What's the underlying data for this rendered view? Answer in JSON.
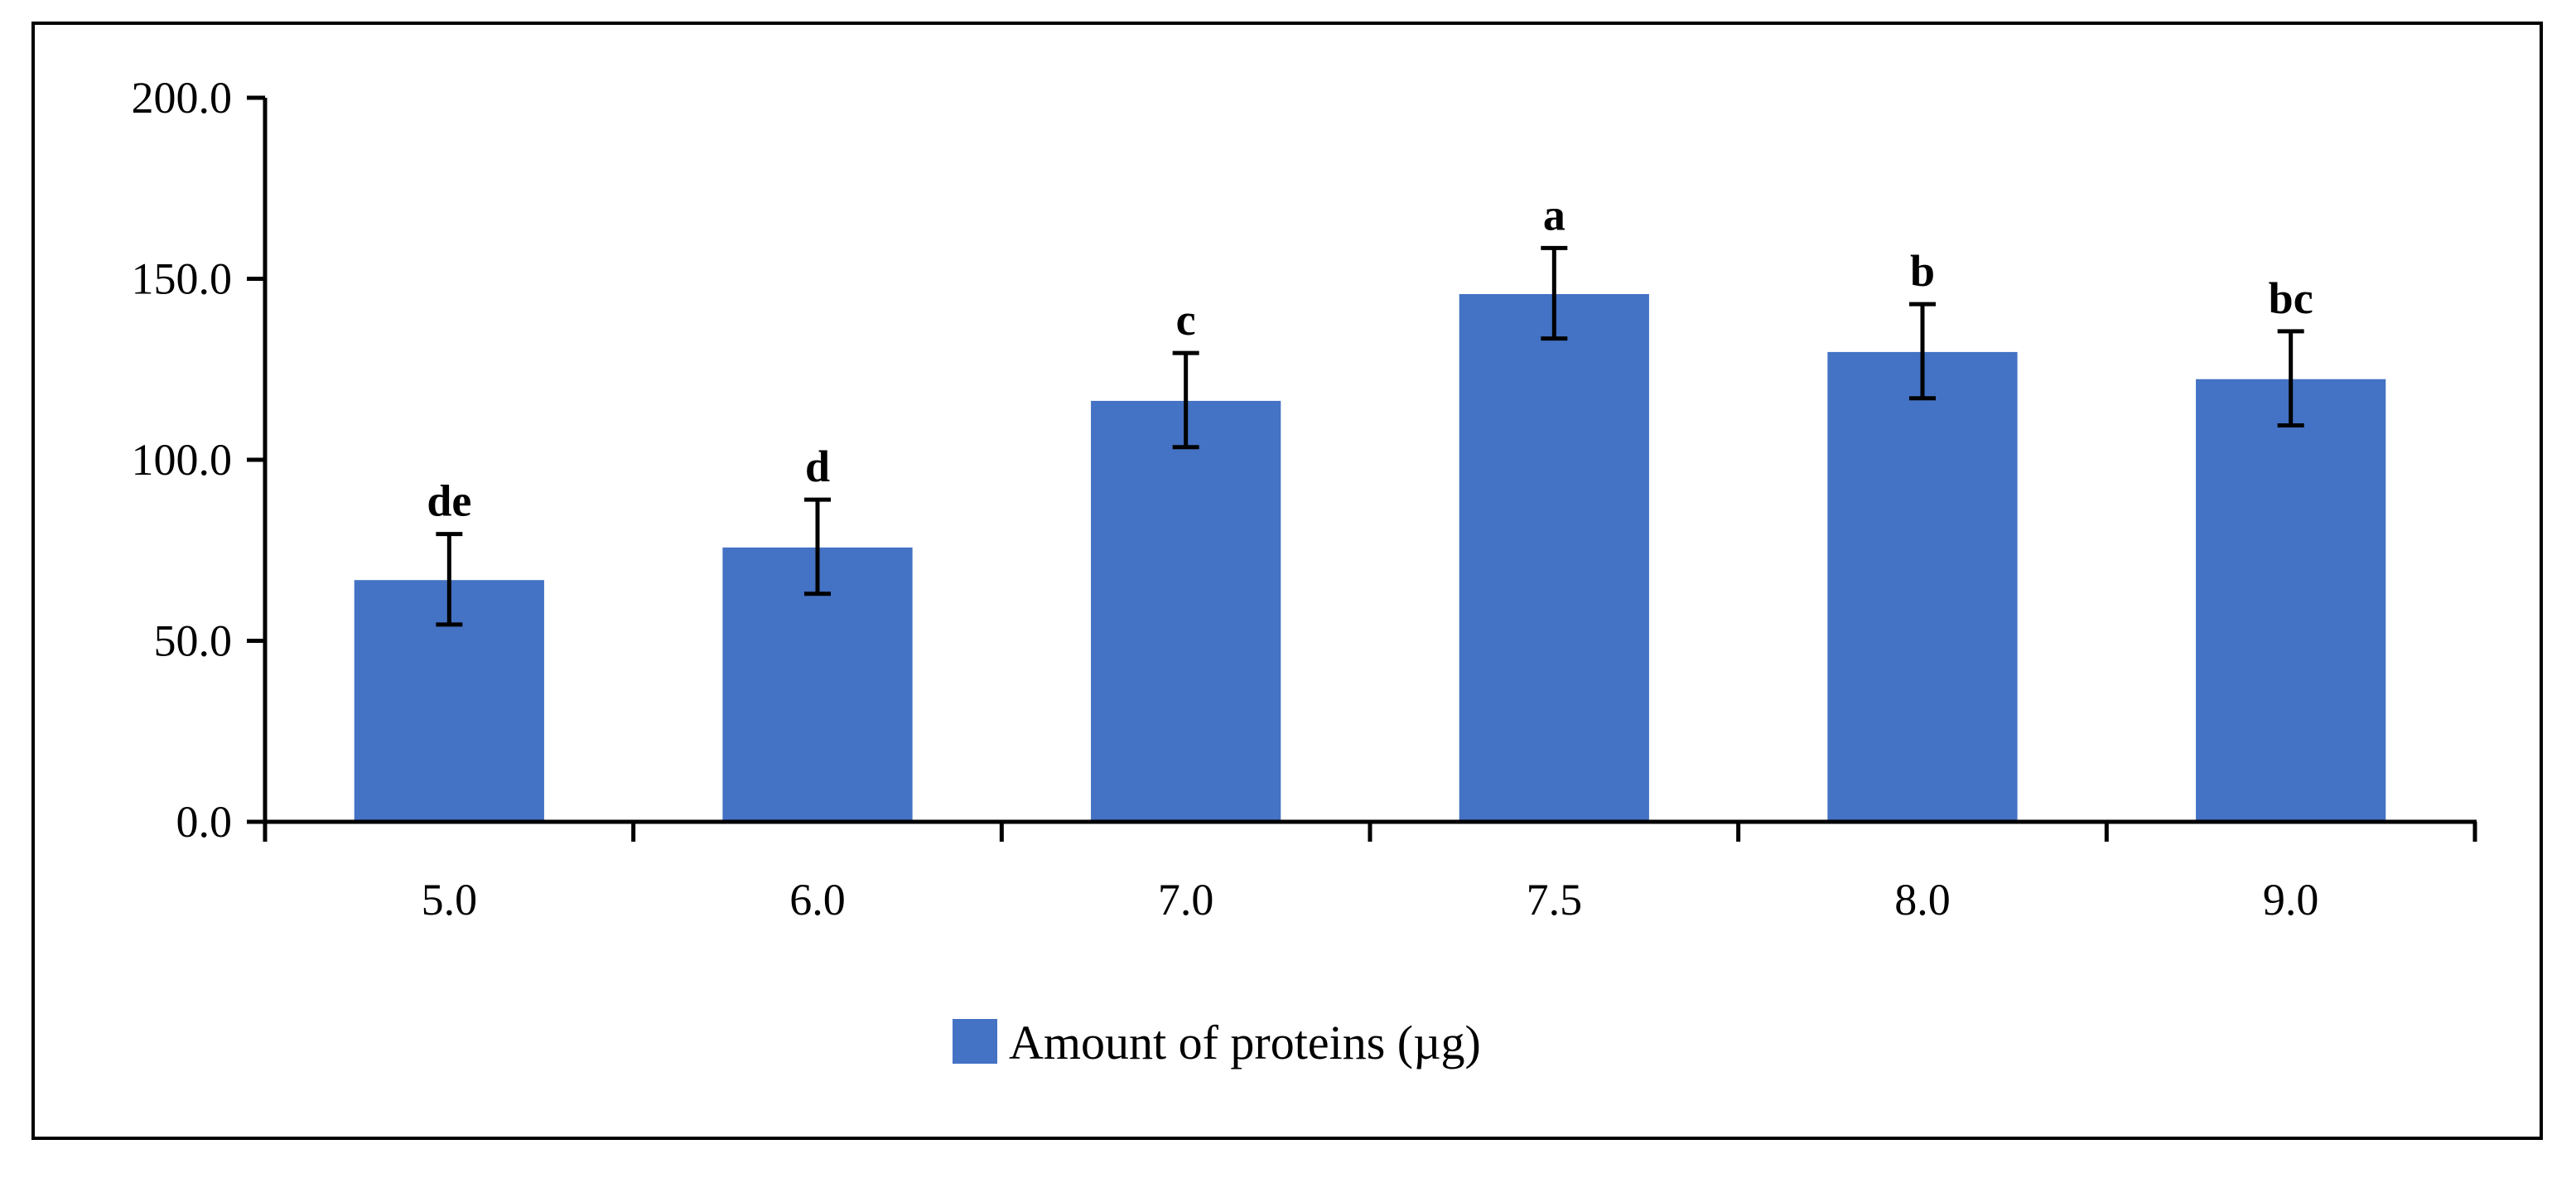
{
  "chart_data": {
    "type": "bar",
    "title": "",
    "xlabel": "",
    "ylabel": "",
    "categories": [
      "5.0",
      "6.0",
      "7.0",
      "7.5",
      "8.0",
      "9.0"
    ],
    "series": [
      {
        "name": "Amount of proteins (µg)",
        "color": "#4472C4",
        "values": [
          67,
          76,
          116.5,
          146,
          130,
          122.5
        ],
        "error": [
          12.5,
          13,
          13,
          12.5,
          13,
          13
        ]
      }
    ],
    "significance_labels": [
      "de",
      "d",
      "c",
      "a",
      "b",
      "bc"
    ],
    "ylim": [
      0,
      200
    ],
    "yticks": [
      0,
      50,
      100,
      150,
      200
    ],
    "ytick_labels": [
      "0.0",
      "50.0",
      "100.0",
      "150.0",
      "200.0"
    ],
    "grid": false,
    "legend": "bottom-center"
  }
}
